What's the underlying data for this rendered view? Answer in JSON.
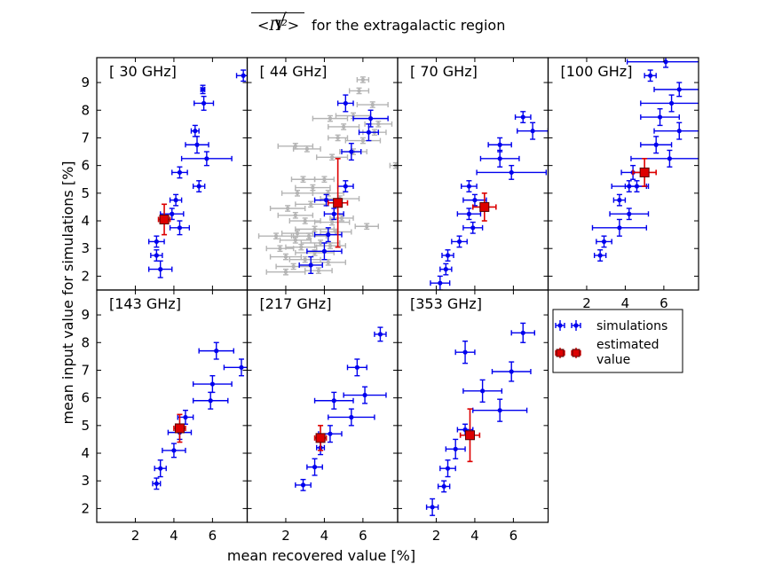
{
  "title": {
    "math": "<Π²>",
    "text": "for the extragalactic region"
  },
  "xlabel": "mean recovered value [%]",
  "ylabel": "mean input value for simulations [%]",
  "xlim": [
    0,
    7.8
  ],
  "ylim": [
    1.5,
    9.9
  ],
  "xticks": [
    2,
    4,
    6
  ],
  "yticks": [
    2,
    3,
    4,
    5,
    6,
    7,
    8,
    9
  ],
  "legend": {
    "sim_label": "simulations",
    "est_label_line1": "estimated",
    "est_label_line2": "value",
    "sim_color": "#0000ee",
    "est_color": "#dd0000",
    "other_color": "#b4b4b4"
  },
  "chart_data": [
    {
      "label": "[ 30 GHz]",
      "sims": [
        [
          7.6,
          9.25,
          0.35,
          0.2
        ],
        [
          5.5,
          8.75,
          0.1,
          0.15
        ],
        [
          5.55,
          8.25,
          0.5,
          0.25
        ],
        [
          5.1,
          7.25,
          0.2,
          0.2
        ],
        [
          5.2,
          6.75,
          0.6,
          0.3
        ],
        [
          5.7,
          6.25,
          1.3,
          0.25
        ],
        [
          4.3,
          5.75,
          0.4,
          0.2
        ],
        [
          5.3,
          5.25,
          0.3,
          0.2
        ],
        [
          4.1,
          4.75,
          0.3,
          0.2
        ],
        [
          3.9,
          4.25,
          0.6,
          0.2
        ],
        [
          4.3,
          3.75,
          0.5,
          0.25
        ],
        [
          3.1,
          3.25,
          0.4,
          0.2
        ],
        [
          3.1,
          2.75,
          0.3,
          0.2
        ],
        [
          3.3,
          2.25,
          0.6,
          0.3
        ]
      ],
      "est": [
        3.5,
        4.05,
        0.3,
        0.55
      ],
      "others": []
    },
    {
      "label": "[ 44 GHz]",
      "sims": [
        [
          5.1,
          8.25,
          0.4,
          0.3
        ],
        [
          6.4,
          7.7,
          0.9,
          0.3
        ],
        [
          6.3,
          7.2,
          0.5,
          0.3
        ],
        [
          5.4,
          6.5,
          0.5,
          0.3
        ],
        [
          5.1,
          5.25,
          0.4,
          0.2
        ],
        [
          4.1,
          4.75,
          0.6,
          0.2
        ],
        [
          4.5,
          4.25,
          0.5,
          0.2
        ],
        [
          4.2,
          3.5,
          0.7,
          0.25
        ],
        [
          4.0,
          2.9,
          0.9,
          0.3
        ],
        [
          3.3,
          2.4,
          0.6,
          0.3
        ]
      ],
      "est": [
        4.7,
        4.65,
        0.5,
        1.6
      ],
      "others": [
        [
          6.0,
          9.1,
          0.3
        ],
        [
          5.8,
          8.7,
          0.5
        ],
        [
          6.5,
          8.2,
          0.8
        ],
        [
          5.5,
          7.8,
          0.9
        ],
        [
          4.3,
          7.7,
          0.9
        ],
        [
          6.8,
          7.5,
          0.7
        ],
        [
          5.0,
          7.4,
          0.8
        ],
        [
          6.6,
          7.2,
          0.6
        ],
        [
          6.0,
          6.9,
          0.9
        ],
        [
          4.7,
          7.0,
          0.5
        ],
        [
          2.5,
          6.7,
          0.9
        ],
        [
          3.1,
          6.6,
          0.7
        ],
        [
          5.5,
          6.5,
          0.7
        ],
        [
          4.4,
          6.3,
          0.8
        ],
        [
          7.7,
          6.0,
          0.3
        ],
        [
          3.4,
          5.2,
          0.9
        ],
        [
          4.2,
          5.0,
          0.8
        ],
        [
          2.6,
          5.0,
          0.8
        ],
        [
          4.8,
          4.8,
          1.0
        ],
        [
          3.3,
          4.6,
          0.8
        ],
        [
          2.1,
          4.45,
          0.9
        ],
        [
          2.5,
          4.2,
          0.9
        ],
        [
          4.9,
          4.1,
          0.6
        ],
        [
          3.0,
          4.0,
          0.8
        ],
        [
          4.4,
          3.95,
          0.9
        ],
        [
          3.5,
          3.7,
          1.0
        ],
        [
          2.6,
          3.55,
          0.8
        ],
        [
          3.2,
          3.45,
          0.9
        ],
        [
          4.6,
          3.6,
          0.8
        ],
        [
          2.5,
          3.3,
          0.8
        ],
        [
          1.5,
          3.45,
          0.9
        ],
        [
          3.8,
          3.2,
          1.0
        ],
        [
          2.8,
          3.05,
          0.8
        ],
        [
          1.7,
          3.0,
          0.7
        ],
        [
          4.3,
          3.1,
          0.8
        ],
        [
          3.5,
          2.85,
          1.0
        ],
        [
          2.0,
          2.7,
          0.8
        ],
        [
          3.0,
          2.6,
          0.8
        ],
        [
          4.2,
          2.5,
          0.9
        ],
        [
          2.4,
          2.35,
          0.9
        ],
        [
          2.0,
          2.15,
          1.0
        ],
        [
          3.7,
          2.2,
          0.7
        ],
        [
          6.2,
          3.8,
          0.6
        ],
        [
          2.9,
          5.5,
          0.6
        ],
        [
          4.0,
          5.5,
          0.5
        ]
      ]
    },
    {
      "label": "[ 70 GHz]",
      "sims": [
        [
          6.5,
          7.75,
          0.4,
          0.2
        ],
        [
          7.0,
          7.25,
          0.8,
          0.3
        ],
        [
          5.3,
          6.75,
          0.6,
          0.25
        ],
        [
          5.3,
          6.25,
          1.0,
          0.3
        ],
        [
          5.9,
          5.75,
          1.8,
          0.25
        ],
        [
          3.7,
          5.25,
          0.4,
          0.2
        ],
        [
          4.0,
          4.75,
          0.6,
          0.2
        ],
        [
          3.7,
          4.25,
          0.6,
          0.2
        ],
        [
          3.9,
          3.75,
          0.5,
          0.2
        ],
        [
          3.2,
          3.25,
          0.4,
          0.2
        ],
        [
          2.6,
          2.75,
          0.3,
          0.2
        ],
        [
          2.5,
          2.25,
          0.3,
          0.2
        ],
        [
          2.2,
          1.75,
          0.5,
          0.25
        ]
      ],
      "est": [
        4.5,
        4.5,
        0.6,
        0.5
      ],
      "others": []
    },
    {
      "label": "[100 GHz]",
      "sims": [
        [
          6.1,
          9.75,
          2.0,
          0.2
        ],
        [
          5.3,
          9.25,
          0.3,
          0.2
        ],
        [
          6.8,
          8.75,
          1.3,
          0.25
        ],
        [
          6.4,
          8.25,
          1.6,
          0.3
        ],
        [
          5.8,
          7.75,
          1.0,
          0.3
        ],
        [
          6.8,
          7.25,
          1.3,
          0.3
        ],
        [
          5.6,
          6.75,
          0.8,
          0.3
        ],
        [
          6.3,
          6.25,
          2.0,
          0.3
        ],
        [
          4.4,
          5.75,
          0.6,
          0.25
        ],
        [
          4.6,
          5.25,
          0.6,
          0.2
        ],
        [
          4.2,
          5.25,
          0.9,
          0.2
        ],
        [
          3.7,
          4.75,
          0.3,
          0.2
        ],
        [
          4.2,
          4.25,
          1.0,
          0.2
        ],
        [
          3.7,
          3.75,
          1.4,
          0.3
        ],
        [
          2.9,
          3.25,
          0.4,
          0.2
        ],
        [
          2.7,
          2.75,
          0.3,
          0.2
        ]
      ],
      "est": [
        5.0,
        5.75,
        0.6,
        0.5
      ],
      "others": []
    },
    {
      "label": "[143 GHz]",
      "sims": [
        [
          7.5,
          7.1,
          0.9,
          0.3
        ],
        [
          6.2,
          7.7,
          0.9,
          0.3
        ],
        [
          6.0,
          6.5,
          1.0,
          0.3
        ],
        [
          5.9,
          5.9,
          0.9,
          0.3
        ],
        [
          4.6,
          5.3,
          0.4,
          0.25
        ],
        [
          4.3,
          4.75,
          0.6,
          0.25
        ],
        [
          4.0,
          4.1,
          0.6,
          0.25
        ],
        [
          3.3,
          3.45,
          0.3,
          0.3
        ],
        [
          3.1,
          2.9,
          0.2,
          0.2
        ]
      ],
      "est": [
        4.3,
        4.9,
        0.3,
        0.5
      ],
      "others": []
    },
    {
      "label": "[217 GHz]",
      "sims": [
        [
          6.9,
          8.3,
          0.3,
          0.25
        ],
        [
          5.7,
          7.1,
          0.5,
          0.3
        ],
        [
          6.1,
          6.1,
          1.1,
          0.3
        ],
        [
          4.5,
          5.9,
          1.0,
          0.3
        ],
        [
          5.4,
          5.3,
          1.2,
          0.3
        ],
        [
          4.3,
          4.7,
          0.6,
          0.3
        ],
        [
          3.8,
          4.2,
          0.2,
          0.25
        ],
        [
          3.5,
          3.5,
          0.4,
          0.3
        ],
        [
          2.9,
          2.85,
          0.4,
          0.2
        ]
      ],
      "est": [
        3.8,
        4.55,
        0.3,
        0.45
      ],
      "others": []
    },
    {
      "label": "[353 GHz]",
      "sims": [
        [
          6.5,
          8.35,
          0.6,
          0.35
        ],
        [
          3.5,
          7.65,
          0.5,
          0.4
        ],
        [
          5.9,
          6.95,
          1.0,
          0.35
        ],
        [
          4.4,
          6.25,
          1.0,
          0.4
        ],
        [
          5.3,
          5.55,
          1.4,
          0.4
        ],
        [
          3.5,
          4.85,
          0.4,
          0.2
        ],
        [
          3.0,
          4.15,
          0.5,
          0.35
        ],
        [
          2.6,
          3.45,
          0.4,
          0.3
        ],
        [
          2.4,
          2.8,
          0.3,
          0.2
        ],
        [
          1.8,
          2.05,
          0.3,
          0.3
        ]
      ],
      "est": [
        3.75,
        4.65,
        0.5,
        0.95
      ],
      "others": []
    }
  ]
}
